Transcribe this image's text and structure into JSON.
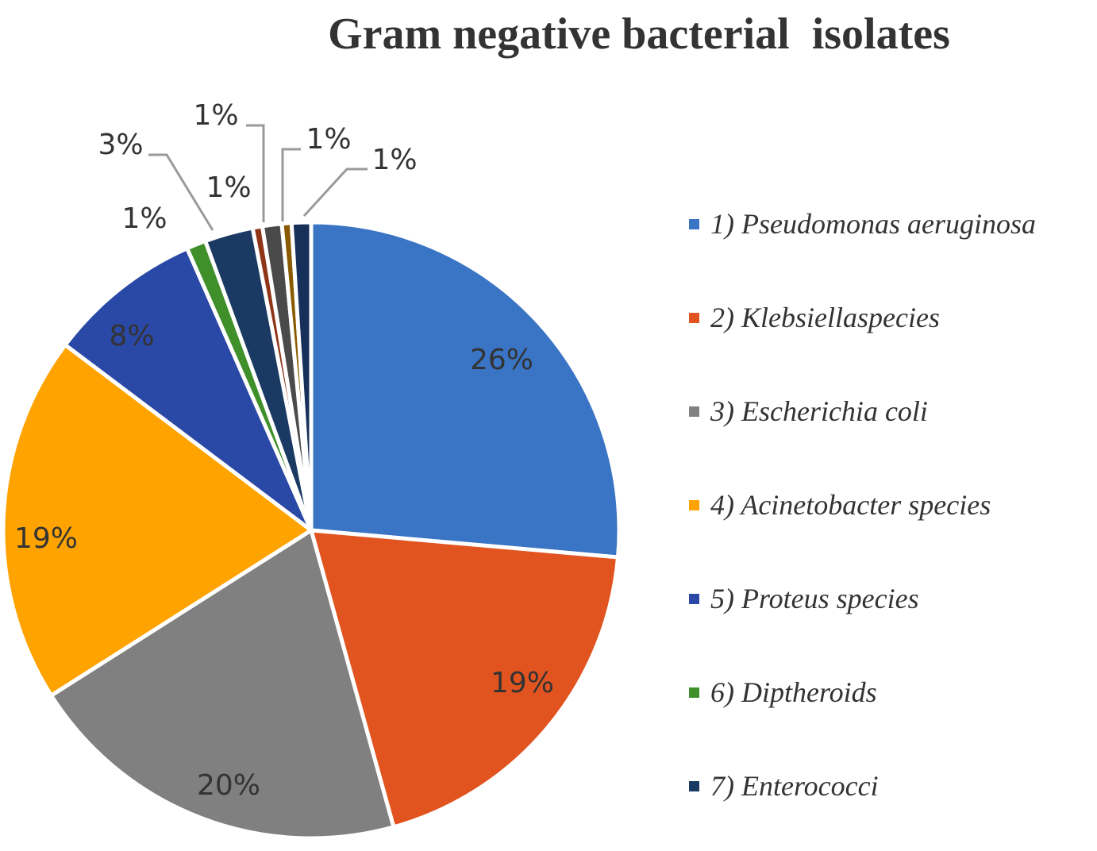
{
  "chart_data": {
    "type": "pie",
    "title": "Gram negative bacterial  isolates",
    "slices": [
      {
        "label": "1) Pseudomonas aeruginosa",
        "value": 26,
        "data_label": "26%",
        "color": "#3A74C4",
        "in_legend": true
      },
      {
        "label": "2) Klebsiellaspecies",
        "value": 19,
        "data_label": "19%",
        "color": "#E2541F",
        "in_legend": true
      },
      {
        "label": "3) Escherichia coli",
        "value": 20,
        "data_label": "20%",
        "color": "#808080",
        "in_legend": true
      },
      {
        "label": "4) Acinetobacter species",
        "value": 19,
        "data_label": "19%",
        "color": "#FFA300",
        "in_legend": true
      },
      {
        "label": "5) Proteus species",
        "value": 8,
        "data_label": "8%",
        "color": "#2A48A6",
        "in_legend": true
      },
      {
        "label": "6) Diptheroids",
        "value": 1,
        "data_label": "1%",
        "color": "#3F8F2B",
        "in_legend": true
      },
      {
        "label": "7) Enterococci",
        "value": 2.5,
        "data_label": "3%",
        "color": "#1B3A63",
        "in_legend": true
      },
      {
        "label": "",
        "value": 0.5,
        "data_label": "1%",
        "color": "#8E3518",
        "in_legend": false
      },
      {
        "label": "",
        "value": 1,
        "data_label": "1%",
        "color": "#4A4A4A",
        "in_legend": false
      },
      {
        "label": "",
        "value": 0.5,
        "data_label": "1%",
        "color": "#8A5A00",
        "in_legend": false
      },
      {
        "label": "",
        "value": 1,
        "data_label": "1%",
        "color": "#17305A",
        "in_legend": false
      }
    ],
    "legend_position": "right"
  }
}
